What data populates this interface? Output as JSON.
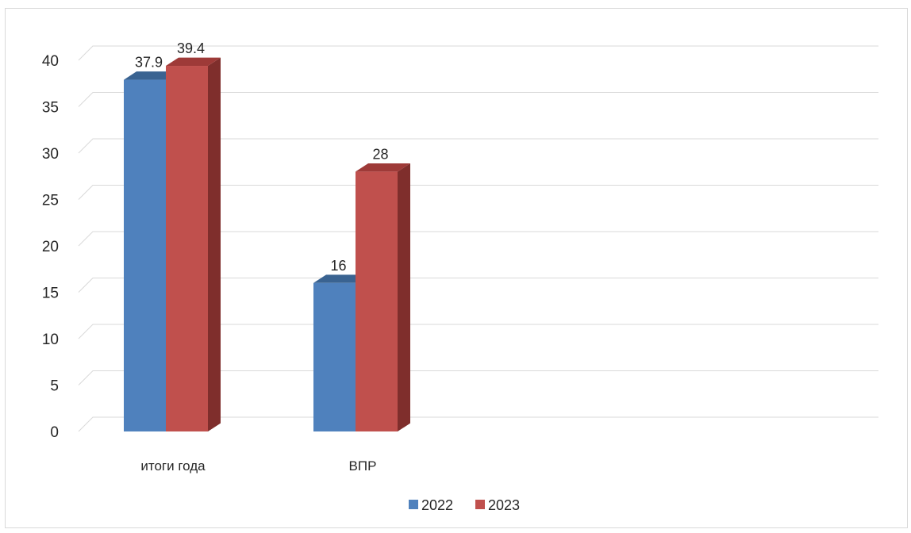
{
  "chart_data": {
    "type": "bar",
    "style": "3d-clustered-column",
    "categories": [
      "итоги года",
      "ВПР"
    ],
    "series": [
      {
        "name": "2022",
        "values": [
          37.9,
          16
        ],
        "labels": [
          "37.9",
          "16"
        ],
        "color": "#4F81BD",
        "top_color": "#3A6391",
        "side_color": "#2F4F76"
      },
      {
        "name": "2023",
        "values": [
          39.4,
          28
        ],
        "labels": [
          "39.4",
          "28"
        ],
        "color": "#C0504D",
        "top_color": "#9E3A38",
        "side_color": "#7F2E2C"
      }
    ],
    "ylim": [
      0,
      40
    ],
    "yticks": [
      "0",
      "5",
      "10",
      "15",
      "20",
      "25",
      "30",
      "35",
      "40"
    ],
    "grid": true,
    "legend_position": "bottom",
    "grid_color": "#d9d9d9"
  }
}
